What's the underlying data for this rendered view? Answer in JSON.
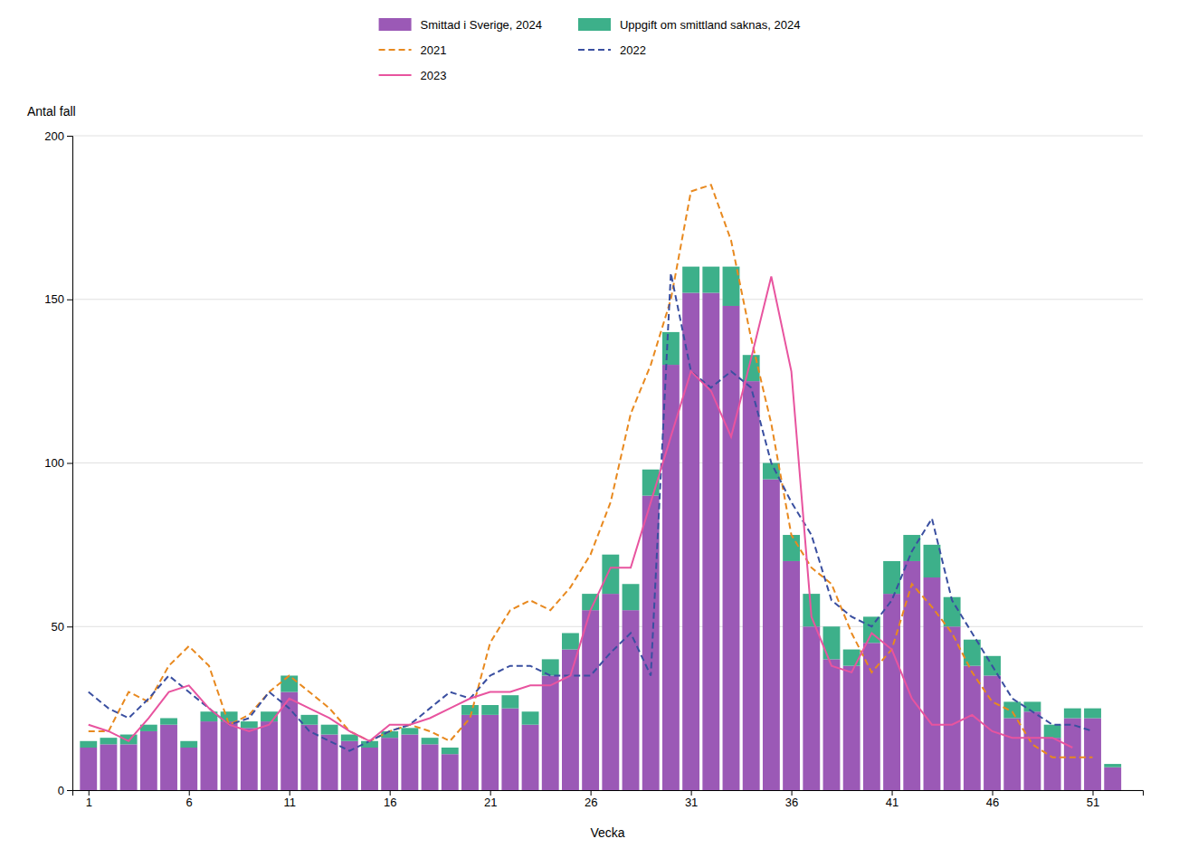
{
  "chart_data": {
    "type": "bar",
    "stacked": true,
    "xlabel": "Vecka",
    "ylabel": "Antal fall",
    "x": [
      1,
      2,
      3,
      4,
      5,
      6,
      7,
      8,
      9,
      10,
      11,
      12,
      13,
      14,
      15,
      16,
      17,
      18,
      19,
      20,
      21,
      22,
      23,
      24,
      25,
      26,
      27,
      28,
      29,
      30,
      31,
      32,
      33,
      34,
      35,
      36,
      37,
      38,
      39,
      40,
      41,
      42,
      43,
      44,
      45,
      46,
      47,
      48,
      49,
      50,
      51,
      52
    ],
    "xlim": [
      0.2,
      53.5
    ],
    "xticks": [
      1,
      6,
      11,
      16,
      21,
      26,
      31,
      36,
      41,
      46,
      51
    ],
    "ylim": [
      0,
      200
    ],
    "yticks": [
      0,
      50,
      100,
      150,
      200
    ],
    "grid": "y",
    "legend": "top",
    "series": [
      {
        "name": "Smittad i Sverige, 2024",
        "type": "bar",
        "color": "#9b59b6",
        "values": [
          13,
          14,
          14,
          18,
          20,
          13,
          21,
          21,
          19,
          21,
          30,
          20,
          17,
          15,
          13,
          16,
          17,
          14,
          11,
          23,
          23,
          25,
          20,
          35,
          43,
          55,
          60,
          55,
          90,
          130,
          152,
          152,
          148,
          125,
          95,
          70,
          50,
          40,
          38,
          45,
          60,
          70,
          65,
          50,
          38,
          35,
          22,
          24,
          16,
          22,
          22,
          7
        ]
      },
      {
        "name": "Uppgift om smittland saknas, 2024",
        "type": "bar",
        "color": "#3db08a",
        "values": [
          2,
          2,
          3,
          2,
          2,
          2,
          3,
          3,
          2,
          3,
          5,
          3,
          3,
          2,
          2,
          2,
          2,
          2,
          2,
          3,
          3,
          4,
          4,
          5,
          5,
          5,
          12,
          8,
          8,
          10,
          8,
          8,
          12,
          8,
          5,
          8,
          10,
          10,
          5,
          8,
          10,
          8,
          10,
          9,
          8,
          6,
          5,
          3,
          4,
          3,
          3,
          1
        ]
      },
      {
        "name": "2021",
        "type": "line",
        "line_style": "dashed",
        "color": "#e8891f",
        "values": [
          18,
          18,
          30,
          27,
          38,
          44,
          38,
          20,
          23,
          30,
          35,
          30,
          25,
          18,
          15,
          18,
          20,
          18,
          15,
          22,
          45,
          55,
          58,
          55,
          62,
          72,
          88,
          115,
          130,
          150,
          183,
          185,
          168,
          138,
          112,
          78,
          68,
          63,
          48,
          36,
          43,
          63,
          56,
          48,
          36,
          27,
          24,
          14,
          10,
          10,
          10,
          null
        ]
      },
      {
        "name": "2022",
        "type": "line",
        "line_style": "dashed",
        "color": "#3a4fa0",
        "values": [
          30,
          25,
          22,
          28,
          35,
          30,
          25,
          20,
          22,
          30,
          25,
          18,
          15,
          12,
          15,
          18,
          20,
          25,
          30,
          28,
          35,
          38,
          38,
          35,
          35,
          35,
          42,
          48,
          35,
          158,
          128,
          123,
          128,
          123,
          100,
          88,
          78,
          58,
          53,
          50,
          58,
          73,
          83,
          58,
          48,
          38,
          28,
          24,
          20,
          20,
          18,
          null
        ]
      },
      {
        "name": "2023",
        "type": "line",
        "line_style": "solid",
        "color": "#e8549f",
        "values": [
          20,
          18,
          15,
          22,
          30,
          32,
          25,
          20,
          18,
          20,
          28,
          25,
          22,
          18,
          15,
          20,
          20,
          22,
          25,
          28,
          30,
          30,
          32,
          32,
          35,
          55,
          68,
          68,
          88,
          108,
          128,
          122,
          108,
          132,
          157,
          128,
          53,
          38,
          36,
          48,
          43,
          28,
          20,
          20,
          23,
          18,
          16,
          16,
          16,
          13,
          null,
          null
        ]
      }
    ]
  }
}
